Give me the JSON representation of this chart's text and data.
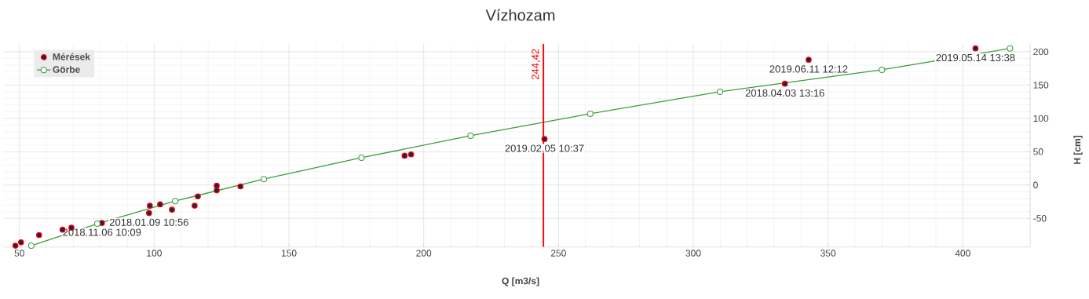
{
  "chart_data": {
    "type": "scatter",
    "title": "Vízhozam",
    "xlabel": "Q [m3/s]",
    "ylabel": "H [cm]",
    "xlim": [
      44,
      425
    ],
    "ylim": [
      -93,
      212
    ],
    "xticks": [
      50,
      100,
      150,
      200,
      250,
      300,
      350,
      400
    ],
    "yticks": [
      -50,
      0,
      50,
      100,
      150,
      200
    ],
    "grid": true,
    "legend": "top left",
    "marker": "circle",
    "series": [
      {
        "name": "Mérések",
        "color": "#ff0000",
        "x": [
          48.5,
          50.6,
          57.3,
          66,
          69.3,
          80.6,
          98.1,
          98.4,
          102.2,
          106.6,
          115,
          116.2,
          123.2,
          123.2,
          132,
          192.9,
          195.3,
          244.8,
          334,
          342.8,
          404.7
        ],
        "values": [
          -91,
          -86,
          -75,
          -67,
          -64,
          -57,
          -42,
          -31,
          -29,
          -37,
          -31,
          -17,
          -1,
          -8,
          -2,
          44,
          46,
          69,
          152,
          188,
          205
        ]
      },
      {
        "name": "Görbe",
        "type": "line",
        "color": "#3a9d3a",
        "x": [
          54.4,
          78.9,
          107.8,
          140.7,
          176.9,
          217.4,
          261.8,
          309.9,
          370,
          417.5
        ],
        "values": [
          -91,
          -58,
          -24,
          9,
          41,
          74,
          107,
          140,
          173,
          205
        ]
      }
    ],
    "ref_lines": [
      {
        "axis": "x",
        "value": 244.42,
        "label": "244,42",
        "color": "#ff0000"
      }
    ],
    "annotations": [
      {
        "text": "2018.11.06 10:09",
        "x": 80.6,
        "y": -57
      },
      {
        "text": "2018.01.09 10:56",
        "x": 98.1,
        "y": -42
      },
      {
        "text": "2019.02.05 10:37",
        "x": 244.8,
        "y": 69
      },
      {
        "text": "2018.04.03 13:16",
        "x": 334,
        "y": 152
      },
      {
        "text": "2019.06.11 12:12",
        "x": 342.8,
        "y": 188
      },
      {
        "text": "2019.05.14 13:38",
        "x": 404.7,
        "y": 205
      }
    ]
  }
}
